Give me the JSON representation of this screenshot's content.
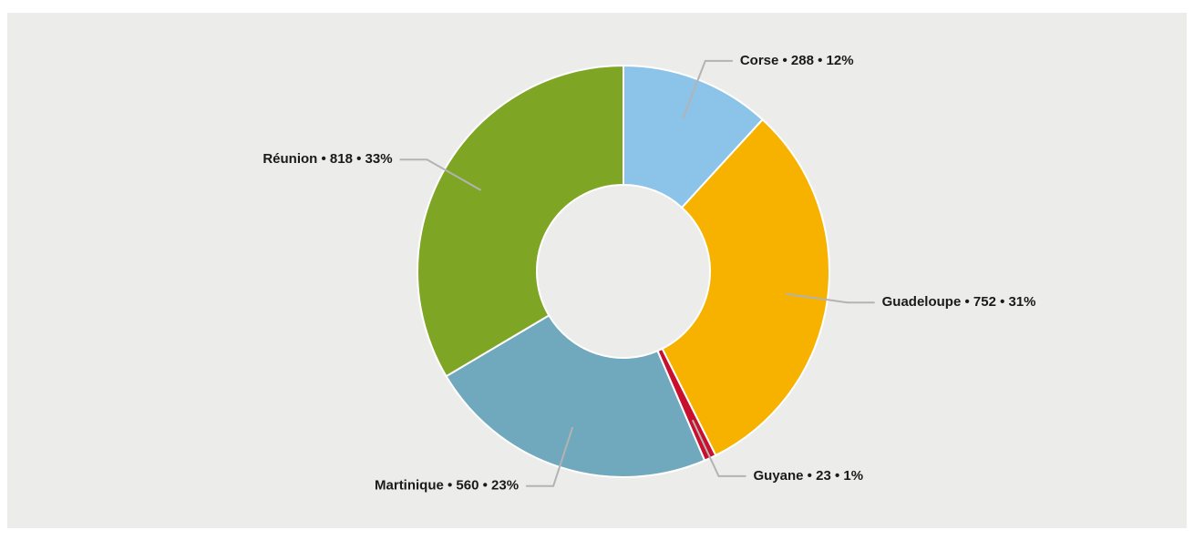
{
  "chart_data": {
    "type": "donut",
    "values": [
      288,
      752,
      23,
      560,
      818
    ],
    "value_labels": [
      "Corse • 288 • 12%",
      "Guadeloupe • 752 • 31%",
      "Guyane • 23 • 1%",
      "Martinique • 560 • 23%",
      "Réunion • 818 • 33%"
    ],
    "colors": [
      "#8bc4e8",
      "#f7b200",
      "#c8102e",
      "#70a9bd",
      "#7fa524"
    ]
  }
}
